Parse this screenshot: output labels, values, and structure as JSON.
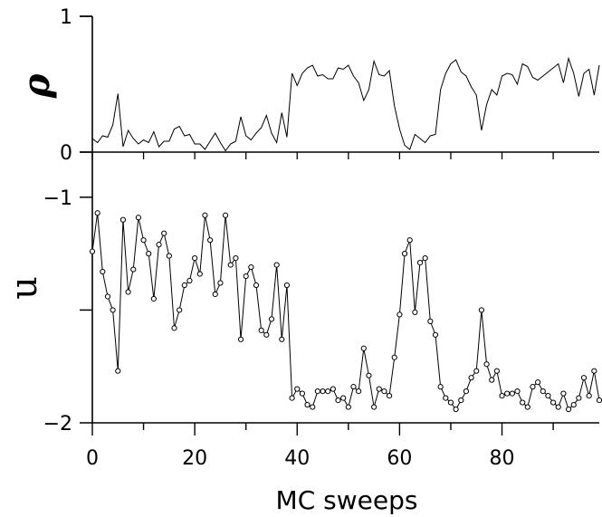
{
  "chart_data": [
    {
      "type": "line",
      "panel": "top",
      "ylabel": "ρ",
      "ylim": [
        0,
        1
      ],
      "yticks": [
        {
          "value": 0,
          "label": "0"
        },
        {
          "value": 1,
          "label": "1"
        }
      ],
      "xlim": [
        0,
        99
      ],
      "x_start": 0,
      "markers": false,
      "y": [
        0.1,
        0.07,
        0.12,
        0.11,
        0.2,
        0.43,
        0.04,
        0.16,
        0.1,
        0.06,
        0.09,
        0.07,
        0.15,
        0.04,
        0.08,
        0.08,
        0.17,
        0.19,
        0.12,
        0.13,
        0.06,
        0.06,
        0.02,
        0.08,
        0.14,
        0.07,
        0.01,
        0.06,
        0.08,
        0.26,
        0.12,
        0.09,
        0.14,
        0.18,
        0.27,
        0.14,
        0.07,
        0.29,
        0.11,
        0.58,
        0.49,
        0.58,
        0.62,
        0.64,
        0.56,
        0.57,
        0.54,
        0.54,
        0.62,
        0.61,
        0.64,
        0.56,
        0.51,
        0.38,
        0.46,
        0.67,
        0.57,
        0.56,
        0.6,
        0.34,
        0.17,
        0.05,
        0.02,
        0.13,
        0.1,
        0.07,
        0.12,
        0.13,
        0.46,
        0.58,
        0.65,
        0.68,
        0.59,
        0.56,
        0.48,
        0.42,
        0.16,
        0.35,
        0.46,
        0.42,
        0.56,
        0.58,
        0.57,
        0.5,
        0.65,
        0.63,
        0.55,
        0.53,
        0.56,
        0.59,
        0.62,
        0.65,
        0.51,
        0.69,
        0.58,
        0.41,
        0.58,
        0.61,
        0.42,
        0.64
      ]
    },
    {
      "type": "line",
      "panel": "bottom",
      "ylabel": "u",
      "ylim": [
        -2,
        -0.8
      ],
      "yticks": [
        {
          "value": -1,
          "label": "−1"
        },
        {
          "value": -1.5,
          "label": ""
        },
        {
          "value": -2,
          "label": "−2"
        }
      ],
      "xlabel": "MC sweeps",
      "xlim": [
        0,
        99
      ],
      "xticks": [
        0,
        20,
        40,
        60,
        80
      ],
      "x_start": 0,
      "markers": true,
      "y": [
        -1.24,
        -1.07,
        -1.33,
        -1.44,
        -1.5,
        -1.77,
        -1.1,
        -1.42,
        -1.32,
        -1.09,
        -1.19,
        -1.25,
        -1.45,
        -1.21,
        -1.16,
        -1.26,
        -1.58,
        -1.5,
        -1.39,
        -1.37,
        -1.27,
        -1.34,
        -1.08,
        -1.19,
        -1.43,
        -1.38,
        -1.08,
        -1.3,
        -1.27,
        -1.63,
        -1.35,
        -1.31,
        -1.39,
        -1.59,
        -1.61,
        -1.54,
        -1.3,
        -1.63,
        -1.39,
        -1.89,
        -1.85,
        -1.87,
        -1.92,
        -1.93,
        -1.86,
        -1.86,
        -1.86,
        -1.85,
        -1.9,
        -1.89,
        -1.93,
        -1.84,
        -1.86,
        -1.67,
        -1.79,
        -1.93,
        -1.85,
        -1.86,
        -1.88,
        -1.71,
        -1.52,
        -1.25,
        -1.19,
        -1.51,
        -1.29,
        -1.27,
        -1.55,
        -1.61,
        -1.84,
        -1.89,
        -1.91,
        -1.94,
        -1.9,
        -1.86,
        -1.8,
        -1.77,
        -1.5,
        -1.74,
        -1.81,
        -1.77,
        -1.88,
        -1.87,
        -1.87,
        -1.86,
        -1.91,
        -1.93,
        -1.84,
        -1.82,
        -1.86,
        -1.88,
        -1.91,
        -1.93,
        -1.87,
        -1.94,
        -1.92,
        -1.89,
        -1.8,
        -1.88,
        -1.77,
        -1.9
      ]
    }
  ]
}
